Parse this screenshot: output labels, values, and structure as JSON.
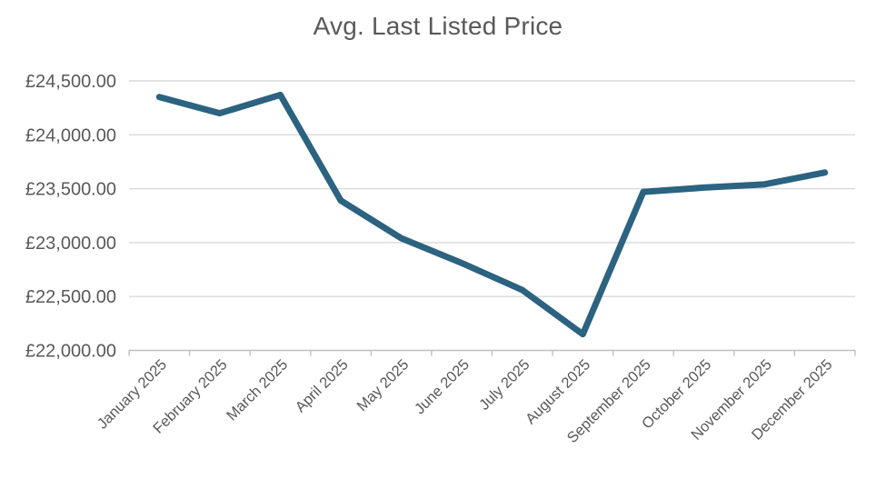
{
  "chart_data": {
    "type": "line",
    "title": "Avg. Last Listed Price",
    "categories": [
      "January 2025",
      "February 2025",
      "March 2025",
      "April 2025",
      "May 2025",
      "June 2025",
      "July 2025",
      "August 2025",
      "September 2025",
      "October 2025",
      "November 2025",
      "December 2025"
    ],
    "series": [
      {
        "name": "Avg. Last Listed Price",
        "values": [
          24350,
          24200,
          24370,
          23390,
          23040,
          22810,
          22560,
          22150,
          23470,
          23510,
          23540,
          23650
        ]
      }
    ],
    "xlabel": "",
    "ylabel": "",
    "ylim": [
      22000,
      24500
    ],
    "ytick_step": 500,
    "ytick_labels": [
      "£24,500.00",
      "£24,000.00",
      "£23,500.00",
      "£23,000.00",
      "£22,500.00",
      "£22,000.00"
    ],
    "grid": true,
    "legend": "none",
    "x_label_rotation_deg": -45
  },
  "colors": {
    "line": "#2B6380",
    "title_text": "#595959",
    "axis_label_text": "#595959",
    "gridline": "#D9D9D9",
    "axis_line": "#BFBFBF"
  }
}
